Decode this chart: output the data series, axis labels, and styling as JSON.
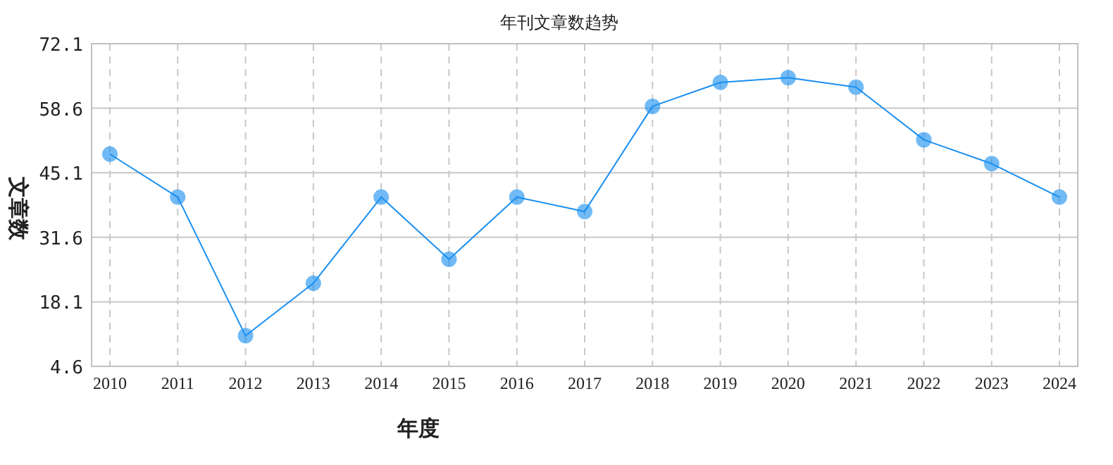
{
  "chart_data": {
    "type": "line",
    "title": "年刊文章数趋势",
    "xlabel": "年度",
    "ylabel": "文章数",
    "categories": [
      "2010",
      "2011",
      "2012",
      "2013",
      "2014",
      "2015",
      "2016",
      "2017",
      "2018",
      "2019",
      "2020",
      "2021",
      "2022",
      "2023",
      "2024"
    ],
    "series": [
      {
        "color": "#1a8ff0",
        "values": [
          49,
          40,
          11,
          22,
          40,
          27,
          40,
          37,
          59,
          64,
          65,
          63,
          52,
          47,
          40
        ]
      }
    ],
    "ylim": [
      4.6,
      72.1
    ],
    "yticks": [
      4.6,
      18.1,
      31.6,
      45.1,
      58.6,
      72.1
    ],
    "grid": true,
    "marker": "circle",
    "line_style": "solid"
  }
}
